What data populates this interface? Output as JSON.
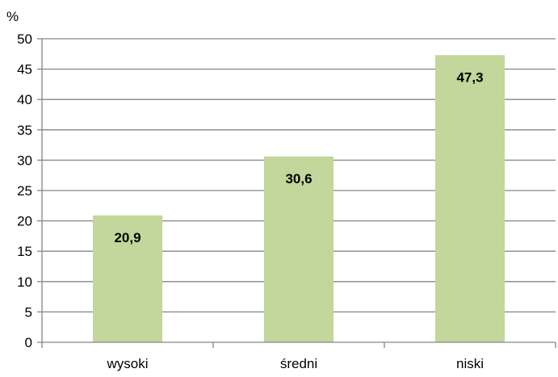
{
  "chart_data": {
    "type": "bar",
    "categories": [
      "wysoki",
      "średni",
      "niski"
    ],
    "values": [
      20.9,
      30.6,
      47.3
    ],
    "value_labels": [
      "20,9",
      "30,6",
      "47,3"
    ],
    "title": "",
    "xlabel": "",
    "ylabel": "%",
    "ylim": [
      0,
      50
    ],
    "yticks": [
      0,
      5,
      10,
      15,
      20,
      25,
      30,
      35,
      40,
      45,
      50
    ],
    "grid": true,
    "legend": "none",
    "colors": {
      "bar": "#c3d69b",
      "grid": "#868686",
      "text": "#000000"
    }
  }
}
